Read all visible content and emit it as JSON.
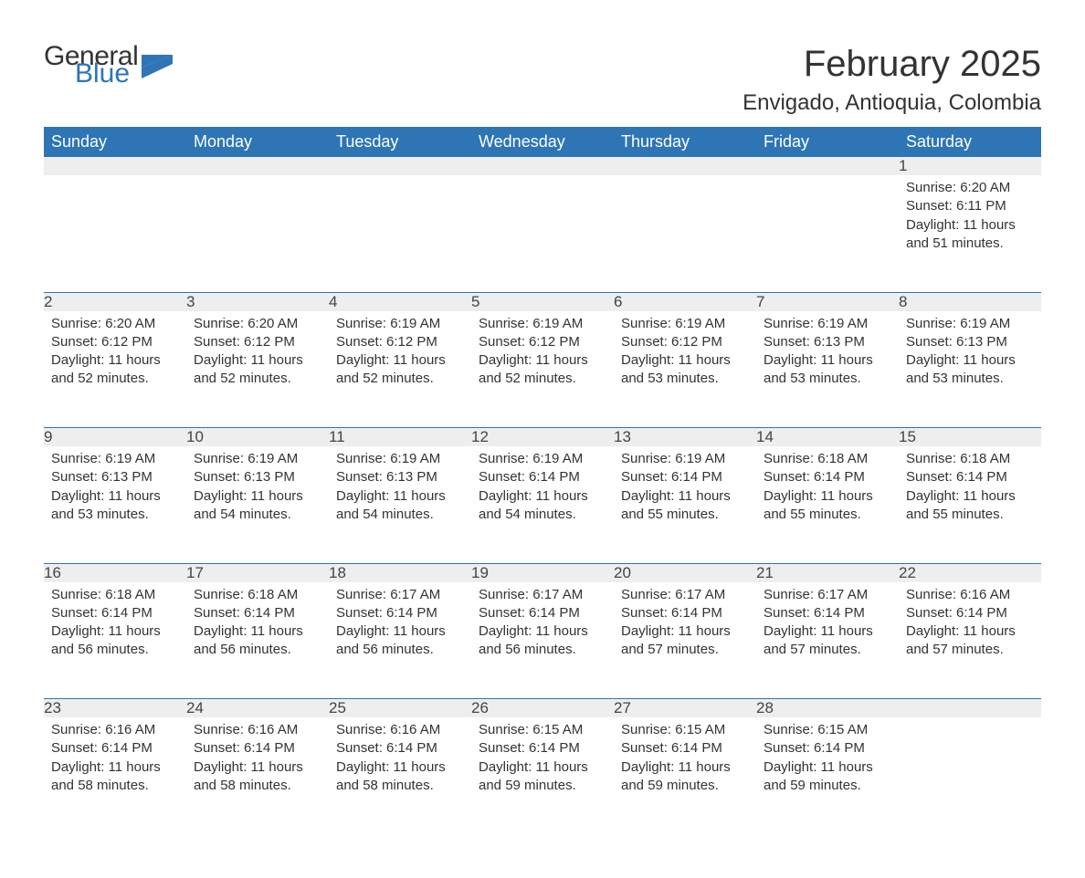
{
  "logo": {
    "text1": "General",
    "text2": "Blue",
    "color_general": "#333333",
    "color_blue": "#2e75b6",
    "triangle_color": "#2e75b6"
  },
  "title": "February 2025",
  "location": "Envigado, Antioquia, Colombia",
  "colors": {
    "header_bg": "#2e75b6",
    "header_text": "#ffffff",
    "daynum_bg": "#eeeeee",
    "row_separator": "#2e75b6",
    "text": "#333333",
    "background": "#ffffff"
  },
  "fonts": {
    "title_size": 40,
    "location_size": 24,
    "weekday_size": 18,
    "daynum_size": 17,
    "body_size": 15
  },
  "weekdays": [
    "Sunday",
    "Monday",
    "Tuesday",
    "Wednesday",
    "Thursday",
    "Friday",
    "Saturday"
  ],
  "weeks": [
    [
      null,
      null,
      null,
      null,
      null,
      null,
      {
        "day": "1",
        "sunrise": "Sunrise: 6:20 AM",
        "sunset": "Sunset: 6:11 PM",
        "daylight": "Daylight: 11 hours and 51 minutes."
      }
    ],
    [
      {
        "day": "2",
        "sunrise": "Sunrise: 6:20 AM",
        "sunset": "Sunset: 6:12 PM",
        "daylight": "Daylight: 11 hours and 52 minutes."
      },
      {
        "day": "3",
        "sunrise": "Sunrise: 6:20 AM",
        "sunset": "Sunset: 6:12 PM",
        "daylight": "Daylight: 11 hours and 52 minutes."
      },
      {
        "day": "4",
        "sunrise": "Sunrise: 6:19 AM",
        "sunset": "Sunset: 6:12 PM",
        "daylight": "Daylight: 11 hours and 52 minutes."
      },
      {
        "day": "5",
        "sunrise": "Sunrise: 6:19 AM",
        "sunset": "Sunset: 6:12 PM",
        "daylight": "Daylight: 11 hours and 52 minutes."
      },
      {
        "day": "6",
        "sunrise": "Sunrise: 6:19 AM",
        "sunset": "Sunset: 6:12 PM",
        "daylight": "Daylight: 11 hours and 53 minutes."
      },
      {
        "day": "7",
        "sunrise": "Sunrise: 6:19 AM",
        "sunset": "Sunset: 6:13 PM",
        "daylight": "Daylight: 11 hours and 53 minutes."
      },
      {
        "day": "8",
        "sunrise": "Sunrise: 6:19 AM",
        "sunset": "Sunset: 6:13 PM",
        "daylight": "Daylight: 11 hours and 53 minutes."
      }
    ],
    [
      {
        "day": "9",
        "sunrise": "Sunrise: 6:19 AM",
        "sunset": "Sunset: 6:13 PM",
        "daylight": "Daylight: 11 hours and 53 minutes."
      },
      {
        "day": "10",
        "sunrise": "Sunrise: 6:19 AM",
        "sunset": "Sunset: 6:13 PM",
        "daylight": "Daylight: 11 hours and 54 minutes."
      },
      {
        "day": "11",
        "sunrise": "Sunrise: 6:19 AM",
        "sunset": "Sunset: 6:13 PM",
        "daylight": "Daylight: 11 hours and 54 minutes."
      },
      {
        "day": "12",
        "sunrise": "Sunrise: 6:19 AM",
        "sunset": "Sunset: 6:14 PM",
        "daylight": "Daylight: 11 hours and 54 minutes."
      },
      {
        "day": "13",
        "sunrise": "Sunrise: 6:19 AM",
        "sunset": "Sunset: 6:14 PM",
        "daylight": "Daylight: 11 hours and 55 minutes."
      },
      {
        "day": "14",
        "sunrise": "Sunrise: 6:18 AM",
        "sunset": "Sunset: 6:14 PM",
        "daylight": "Daylight: 11 hours and 55 minutes."
      },
      {
        "day": "15",
        "sunrise": "Sunrise: 6:18 AM",
        "sunset": "Sunset: 6:14 PM",
        "daylight": "Daylight: 11 hours and 55 minutes."
      }
    ],
    [
      {
        "day": "16",
        "sunrise": "Sunrise: 6:18 AM",
        "sunset": "Sunset: 6:14 PM",
        "daylight": "Daylight: 11 hours and 56 minutes."
      },
      {
        "day": "17",
        "sunrise": "Sunrise: 6:18 AM",
        "sunset": "Sunset: 6:14 PM",
        "daylight": "Daylight: 11 hours and 56 minutes."
      },
      {
        "day": "18",
        "sunrise": "Sunrise: 6:17 AM",
        "sunset": "Sunset: 6:14 PM",
        "daylight": "Daylight: 11 hours and 56 minutes."
      },
      {
        "day": "19",
        "sunrise": "Sunrise: 6:17 AM",
        "sunset": "Sunset: 6:14 PM",
        "daylight": "Daylight: 11 hours and 56 minutes."
      },
      {
        "day": "20",
        "sunrise": "Sunrise: 6:17 AM",
        "sunset": "Sunset: 6:14 PM",
        "daylight": "Daylight: 11 hours and 57 minutes."
      },
      {
        "day": "21",
        "sunrise": "Sunrise: 6:17 AM",
        "sunset": "Sunset: 6:14 PM",
        "daylight": "Daylight: 11 hours and 57 minutes."
      },
      {
        "day": "22",
        "sunrise": "Sunrise: 6:16 AM",
        "sunset": "Sunset: 6:14 PM",
        "daylight": "Daylight: 11 hours and 57 minutes."
      }
    ],
    [
      {
        "day": "23",
        "sunrise": "Sunrise: 6:16 AM",
        "sunset": "Sunset: 6:14 PM",
        "daylight": "Daylight: 11 hours and 58 minutes."
      },
      {
        "day": "24",
        "sunrise": "Sunrise: 6:16 AM",
        "sunset": "Sunset: 6:14 PM",
        "daylight": "Daylight: 11 hours and 58 minutes."
      },
      {
        "day": "25",
        "sunrise": "Sunrise: 6:16 AM",
        "sunset": "Sunset: 6:14 PM",
        "daylight": "Daylight: 11 hours and 58 minutes."
      },
      {
        "day": "26",
        "sunrise": "Sunrise: 6:15 AM",
        "sunset": "Sunset: 6:14 PM",
        "daylight": "Daylight: 11 hours and 59 minutes."
      },
      {
        "day": "27",
        "sunrise": "Sunrise: 6:15 AM",
        "sunset": "Sunset: 6:14 PM",
        "daylight": "Daylight: 11 hours and 59 minutes."
      },
      {
        "day": "28",
        "sunrise": "Sunrise: 6:15 AM",
        "sunset": "Sunset: 6:14 PM",
        "daylight": "Daylight: 11 hours and 59 minutes."
      },
      null
    ]
  ]
}
